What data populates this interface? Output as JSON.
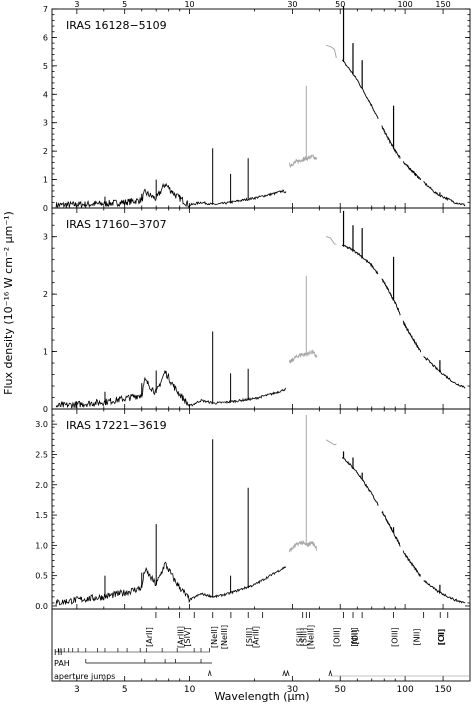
{
  "chart_data": [
    {
      "type": "line",
      "name": "IRAS 16128-5109",
      "label": "IRAS 16128−5109",
      "ylim": [
        0,
        7
      ],
      "yticks": [
        0,
        1,
        2,
        3,
        4,
        5,
        6,
        7
      ],
      "ytick_labels": [
        "0",
        "1",
        "2",
        "3",
        "4",
        "5",
        "6",
        "7"
      ],
      "xscale": "log",
      "xlim": [
        2.3,
        200
      ],
      "continuum": [
        [
          2.4,
          0.1
        ],
        [
          3,
          0.12
        ],
        [
          4,
          0.15
        ],
        [
          5,
          0.2
        ],
        [
          6,
          0.28
        ],
        [
          6.2,
          0.55
        ],
        [
          7,
          0.32
        ],
        [
          7.7,
          0.85
        ],
        [
          8.6,
          0.45
        ],
        [
          10,
          0.1
        ],
        [
          11.3,
          0.2
        ],
        [
          13,
          0.12
        ],
        [
          15,
          0.18
        ],
        [
          20,
          0.35
        ],
        [
          25,
          0.52
        ],
        [
          27,
          0.6
        ],
        [
          28,
          0.55
        ]
      ],
      "lines": [
        [
          12.8,
          2.1
        ],
        [
          15.5,
          1.2
        ],
        [
          18.7,
          1.75
        ],
        [
          7.0,
          1.0
        ],
        [
          4.05,
          0.4
        ],
        [
          6.0,
          0.5
        ],
        [
          9.0,
          0.45
        ]
      ],
      "gray_segment": [
        [
          29,
          1.5
        ],
        [
          31,
          1.6
        ],
        [
          33,
          1.7
        ],
        [
          35,
          1.75
        ],
        [
          37,
          1.8
        ],
        [
          39,
          1.7
        ]
      ],
      "gray_spike": [
        34.8,
        4.3
      ],
      "gray_segment2": [
        [
          43,
          5.75
        ],
        [
          45,
          5.7
        ],
        [
          47,
          5.6
        ],
        [
          48,
          5.3
        ]
      ],
      "longwave": [
        [
          51,
          5.2
        ],
        [
          55,
          4.9
        ],
        [
          60,
          4.5
        ],
        [
          70,
          3.6
        ],
        [
          80,
          2.7
        ],
        [
          90,
          2.0
        ],
        [
          100,
          1.55
        ],
        [
          120,
          0.95
        ],
        [
          140,
          0.5
        ],
        [
          170,
          0.2
        ],
        [
          190,
          0.1
        ]
      ],
      "longwave_lines": [
        [
          51.8,
          7.1
        ],
        [
          57.3,
          5.8
        ],
        [
          63.2,
          5.2
        ],
        [
          88.4,
          3.6
        ],
        [
          145,
          0.55
        ]
      ]
    },
    {
      "type": "line",
      "name": "IRAS 17160-3707",
      "label": "IRAS 17160−3707",
      "ylim": [
        0,
        3.5
      ],
      "yticks": [
        0,
        1,
        2,
        3
      ],
      "ytick_labels": [
        "0",
        "1",
        "2",
        "3"
      ],
      "xscale": "log",
      "xlim": [
        2.3,
        200
      ],
      "continuum": [
        [
          2.4,
          0.05
        ],
        [
          3,
          0.08
        ],
        [
          4,
          0.12
        ],
        [
          5,
          0.18
        ],
        [
          6,
          0.25
        ],
        [
          6.2,
          0.5
        ],
        [
          7,
          0.28
        ],
        [
          7.7,
          0.65
        ],
        [
          8.6,
          0.35
        ],
        [
          10,
          0.05
        ],
        [
          11.3,
          0.15
        ],
        [
          13,
          0.1
        ],
        [
          15,
          0.12
        ],
        [
          20,
          0.18
        ],
        [
          25,
          0.28
        ],
        [
          28,
          0.35
        ]
      ],
      "lines": [
        [
          12.8,
          1.35
        ],
        [
          15.5,
          0.62
        ],
        [
          18.7,
          0.7
        ],
        [
          7.0,
          0.67
        ],
        [
          4.05,
          0.3
        ],
        [
          6.0,
          0.45
        ]
      ],
      "gray_segment": [
        [
          29,
          0.8
        ],
        [
          31,
          0.9
        ],
        [
          33,
          0.95
        ],
        [
          35,
          0.95
        ],
        [
          37,
          1.0
        ],
        [
          39,
          0.9
        ]
      ],
      "gray_spike": [
        34.8,
        2.32
      ],
      "gray_segment2": [
        [
          43,
          3.0
        ],
        [
          45,
          2.95
        ],
        [
          47,
          2.9
        ],
        [
          48,
          2.85
        ]
      ],
      "longwave": [
        [
          51,
          2.85
        ],
        [
          55,
          2.8
        ],
        [
          60,
          2.72
        ],
        [
          70,
          2.5
        ],
        [
          80,
          2.2
        ],
        [
          90,
          1.85
        ],
        [
          100,
          1.45
        ],
        [
          120,
          0.95
        ],
        [
          140,
          0.7
        ],
        [
          170,
          0.45
        ],
        [
          190,
          0.38
        ]
      ],
      "longwave_lines": [
        [
          51.8,
          3.45
        ],
        [
          57.3,
          3.2
        ],
        [
          63.2,
          3.15
        ],
        [
          88.4,
          2.65
        ],
        [
          145,
          0.85
        ]
      ]
    },
    {
      "type": "line",
      "name": "IRAS 17221-3619",
      "label": "IRAS 17221−3619",
      "ylim": [
        -0.05,
        3.25
      ],
      "yticks": [
        0,
        0.5,
        1,
        1.5,
        2,
        2.5,
        3
      ],
      "ytick_labels": [
        "0.0",
        "0.5",
        "1.0",
        "1.5",
        "2.0",
        "2.5",
        "3.0"
      ],
      "xscale": "log",
      "xlim": [
        2.3,
        200
      ],
      "continuum": [
        [
          2.4,
          0.05
        ],
        [
          3,
          0.1
        ],
        [
          4,
          0.15
        ],
        [
          5,
          0.22
        ],
        [
          6,
          0.3
        ],
        [
          6.2,
          0.6
        ],
        [
          7,
          0.35
        ],
        [
          7.7,
          0.7
        ],
        [
          8.6,
          0.4
        ],
        [
          10,
          0.1
        ],
        [
          11.3,
          0.2
        ],
        [
          13,
          0.15
        ],
        [
          15,
          0.2
        ],
        [
          20,
          0.35
        ],
        [
          25,
          0.55
        ],
        [
          28,
          0.65
        ]
      ],
      "lines": [
        [
          12.8,
          2.75
        ],
        [
          15.5,
          0.5
        ],
        [
          18.7,
          1.95
        ],
        [
          7.0,
          1.35
        ],
        [
          4.05,
          0.5
        ],
        [
          6.0,
          0.55
        ]
      ],
      "gray_segment": [
        [
          29,
          0.9
        ],
        [
          31,
          1.0
        ],
        [
          33,
          1.05
        ],
        [
          35,
          1.0
        ],
        [
          37,
          1.05
        ],
        [
          39,
          0.95
        ]
      ],
      "gray_spike": [
        34.8,
        3.15
      ],
      "gray_segment2": [
        [
          43,
          2.75
        ],
        [
          45,
          2.7
        ],
        [
          47,
          2.68
        ],
        [
          48,
          2.65
        ]
      ],
      "longwave": [
        [
          51,
          2.45
        ],
        [
          55,
          2.35
        ],
        [
          60,
          2.2
        ],
        [
          70,
          1.85
        ],
        [
          80,
          1.5
        ],
        [
          90,
          1.15
        ],
        [
          100,
          0.85
        ],
        [
          120,
          0.45
        ],
        [
          140,
          0.25
        ],
        [
          170,
          0.1
        ],
        [
          190,
          0.05
        ]
      ],
      "longwave_lines": [
        [
          51.8,
          2.55
        ],
        [
          57.3,
          2.45
        ],
        [
          63.2,
          2.2
        ],
        [
          88.4,
          1.3
        ],
        [
          145,
          0.35
        ]
      ]
    }
  ],
  "axes": {
    "xlabel": "Wavelength (μm)",
    "ylabel": "Flux density (10⁻¹⁶ W cm⁻² μm⁻¹)",
    "xtick_values": [
      3,
      5,
      10,
      30,
      50,
      100,
      150
    ],
    "xtick_labels": [
      "3",
      "5",
      "10",
      "30",
      "50",
      "100",
      "150"
    ]
  },
  "line_ids": [
    {
      "label": "[ArII]",
      "x": 6.98
    },
    {
      "label": "[ArIII]",
      "x": 8.99
    },
    {
      "label": "[SIV]",
      "x": 10.51
    },
    {
      "label": "[NeII]",
      "x": 12.81
    },
    {
      "label": "[NeIII]",
      "x": 15.55
    },
    {
      "label": "[SIII]",
      "x": 18.71
    },
    {
      "label": "[ArIII]",
      "x": 21.83
    },
    {
      "label": "[SIII]",
      "x": 33.48
    },
    {
      "label": "[SiII]",
      "x": 34.8
    },
    {
      "label": "[NeIII]",
      "x": 36.01
    },
    {
      "label": "[OIII]",
      "x": 51.81
    },
    {
      "label": "[NIII]",
      "x": 57.32
    },
    {
      "label": "[OI]",
      "x": 63.18
    },
    {
      "label": "[OIII]",
      "x": 88.36
    },
    {
      "label": "[NII]",
      "x": 121.9
    },
    {
      "label": "[OI]",
      "x": 145.5
    },
    {
      "label": "[CII]",
      "x": 157.7
    }
  ],
  "rows": [
    {
      "label": "HI"
    },
    {
      "label": "PAH"
    },
    {
      "label": "aperture jumps"
    }
  ],
  "hi_ticks": [
    2.46,
    2.53,
    2.62,
    2.75,
    2.87,
    3.04,
    3.3,
    3.74,
    4.05,
    4.65,
    5.13,
    5.9,
    6.3,
    7.46,
    8.76,
    10.5,
    11.3,
    12.37
  ],
  "pah_ticks": [
    3.3,
    6.2,
    7.7,
    8.6,
    11.3
  ],
  "pah_range": [
    3.3,
    12.7
  ],
  "aperture_jumps": [
    12.4,
    27.5,
    28.5,
    45.0
  ]
}
